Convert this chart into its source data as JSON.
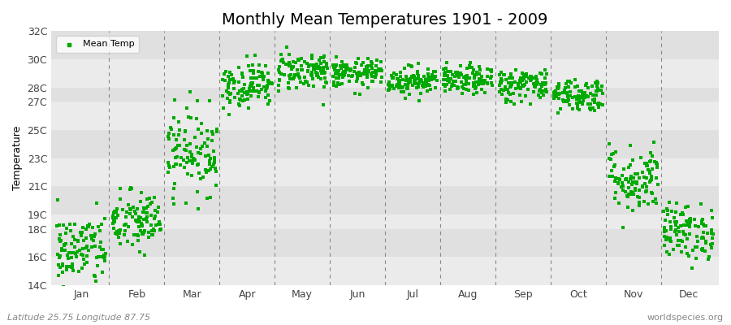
{
  "title": "Monthly Mean Temperatures 1901 - 2009",
  "ylabel": "Temperature",
  "xlabel_months": [
    "Jan",
    "Feb",
    "Mar",
    "Apr",
    "May",
    "Jun",
    "Jul",
    "Aug",
    "Sep",
    "Oct",
    "Nov",
    "Dec"
  ],
  "subtitle_left": "Latitude 25.75 Longitude 87.75",
  "subtitle_right": "worldspecies.org",
  "legend_label": "Mean Temp",
  "dot_color": "#00aa00",
  "background_color": "#ffffff",
  "plot_bg_color": "#e8e8e8",
  "band_colors": [
    "#ebebeb",
    "#e0e0e0"
  ],
  "ylim": [
    14,
    32
  ],
  "yticks": [
    14,
    16,
    18,
    19,
    21,
    23,
    25,
    27,
    28,
    30,
    32
  ],
  "ytick_labels": [
    "14C",
    "16C",
    "18C",
    "19C",
    "21C",
    "23C",
    "25C",
    "27C",
    "28C",
    "30C",
    "32C"
  ],
  "n_years": 109,
  "monthly_means": [
    16.5,
    18.5,
    23.5,
    28.2,
    29.2,
    29.0,
    28.5,
    28.5,
    28.2,
    27.5,
    21.5,
    17.8
  ],
  "monthly_stds": [
    1.3,
    1.1,
    1.5,
    0.8,
    0.7,
    0.5,
    0.5,
    0.5,
    0.6,
    0.6,
    1.2,
    1.0
  ],
  "title_fontsize": 14,
  "axis_fontsize": 9,
  "legend_fontsize": 8,
  "marker_size": 2.5,
  "grid_color": "#888888",
  "tick_color": "#444444",
  "dashed_line_positions": [
    1,
    2,
    3,
    4,
    5,
    6,
    7,
    8,
    9,
    10,
    11
  ]
}
